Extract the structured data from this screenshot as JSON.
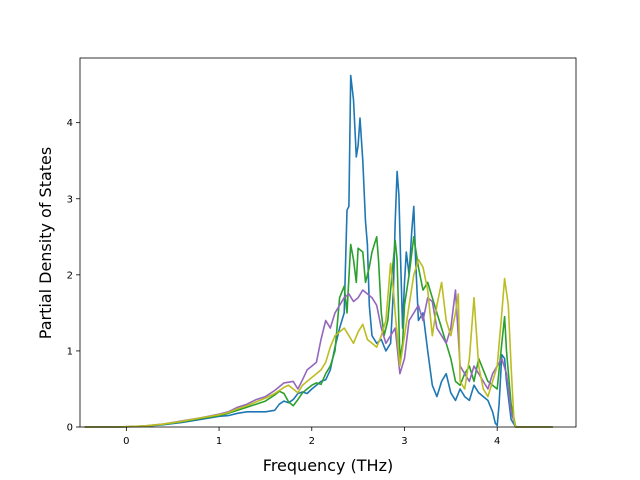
{
  "chart_data": {
    "type": "line",
    "title": "",
    "xlabel": "Frequency (THz)",
    "ylabel": "Partial Density of States",
    "xlim": [
      -0.5,
      4.85
    ],
    "ylim": [
      0,
      4.85
    ],
    "xticks": [
      0,
      1,
      2,
      3,
      4
    ],
    "yticks": [
      0,
      1,
      2,
      3,
      4
    ],
    "grid": false,
    "legend": "none",
    "series": [
      {
        "color": "#1f77b4",
        "points": [
          [
            -0.45,
            0
          ],
          [
            -0.3,
            0
          ],
          [
            -0.1,
            0
          ],
          [
            0.0,
            0.003
          ],
          [
            0.2,
            0.01
          ],
          [
            0.4,
            0.03
          ],
          [
            0.6,
            0.06
          ],
          [
            0.8,
            0.1
          ],
          [
            1.0,
            0.14
          ],
          [
            1.1,
            0.15
          ],
          [
            1.2,
            0.18
          ],
          [
            1.3,
            0.2
          ],
          [
            1.4,
            0.2
          ],
          [
            1.5,
            0.2
          ],
          [
            1.6,
            0.22
          ],
          [
            1.65,
            0.3
          ],
          [
            1.7,
            0.34
          ],
          [
            1.75,
            0.32
          ],
          [
            1.8,
            0.36
          ],
          [
            1.85,
            0.44
          ],
          [
            1.9,
            0.46
          ],
          [
            1.95,
            0.44
          ],
          [
            2.0,
            0.5
          ],
          [
            2.05,
            0.55
          ],
          [
            2.1,
            0.6
          ],
          [
            2.15,
            0.62
          ],
          [
            2.2,
            0.75
          ],
          [
            2.25,
            1.05
          ],
          [
            2.3,
            1.3
          ],
          [
            2.35,
            1.5
          ],
          [
            2.38,
            2.85
          ],
          [
            2.4,
            2.9
          ],
          [
            2.42,
            4.62
          ],
          [
            2.45,
            4.3
          ],
          [
            2.48,
            3.55
          ],
          [
            2.5,
            3.7
          ],
          [
            2.52,
            4.06
          ],
          [
            2.55,
            3.5
          ],
          [
            2.58,
            2.7
          ],
          [
            2.6,
            2.4
          ],
          [
            2.62,
            1.6
          ],
          [
            2.65,
            1.2
          ],
          [
            2.7,
            1.1
          ],
          [
            2.75,
            1.15
          ],
          [
            2.8,
            1.0
          ],
          [
            2.85,
            1.1
          ],
          [
            2.88,
            1.8
          ],
          [
            2.9,
            2.7
          ],
          [
            2.92,
            3.36
          ],
          [
            2.94,
            3.05
          ],
          [
            2.96,
            2.1
          ],
          [
            2.98,
            1.3
          ],
          [
            3.0,
            1.9
          ],
          [
            3.02,
            2.3
          ],
          [
            3.05,
            2.0
          ],
          [
            3.08,
            2.6
          ],
          [
            3.1,
            2.9
          ],
          [
            3.12,
            2.2
          ],
          [
            3.15,
            1.4
          ],
          [
            3.2,
            1.5
          ],
          [
            3.25,
            1.0
          ],
          [
            3.3,
            0.55
          ],
          [
            3.35,
            0.4
          ],
          [
            3.4,
            0.6
          ],
          [
            3.45,
            0.7
          ],
          [
            3.5,
            0.45
          ],
          [
            3.55,
            0.35
          ],
          [
            3.6,
            0.5
          ],
          [
            3.65,
            0.4
          ],
          [
            3.7,
            0.35
          ],
          [
            3.75,
            0.55
          ],
          [
            3.8,
            0.45
          ],
          [
            3.85,
            0.4
          ],
          [
            3.9,
            0.35
          ],
          [
            3.95,
            0.2
          ],
          [
            3.98,
            0.05
          ],
          [
            4.0,
            0.02
          ],
          [
            4.02,
            0.3
          ],
          [
            4.05,
            0.95
          ],
          [
            4.08,
            0.9
          ],
          [
            4.1,
            0.6
          ],
          [
            4.15,
            0.1
          ],
          [
            4.2,
            0
          ],
          [
            4.4,
            0
          ],
          [
            4.6,
            0
          ]
        ]
      },
      {
        "color": "#2ca02c",
        "points": [
          [
            -0.45,
            0
          ],
          [
            -0.3,
            0
          ],
          [
            -0.1,
            0
          ],
          [
            0.0,
            0.003
          ],
          [
            0.2,
            0.012
          ],
          [
            0.4,
            0.035
          ],
          [
            0.6,
            0.07
          ],
          [
            0.8,
            0.11
          ],
          [
            1.0,
            0.15
          ],
          [
            1.1,
            0.18
          ],
          [
            1.2,
            0.22
          ],
          [
            1.3,
            0.26
          ],
          [
            1.4,
            0.3
          ],
          [
            1.5,
            0.34
          ],
          [
            1.6,
            0.42
          ],
          [
            1.65,
            0.47
          ],
          [
            1.7,
            0.44
          ],
          [
            1.75,
            0.33
          ],
          [
            1.8,
            0.28
          ],
          [
            1.85,
            0.36
          ],
          [
            1.9,
            0.45
          ],
          [
            1.95,
            0.5
          ],
          [
            2.0,
            0.55
          ],
          [
            2.05,
            0.58
          ],
          [
            2.1,
            0.56
          ],
          [
            2.15,
            0.7
          ],
          [
            2.2,
            0.8
          ],
          [
            2.25,
            1.0
          ],
          [
            2.3,
            1.7
          ],
          [
            2.35,
            1.85
          ],
          [
            2.38,
            1.5
          ],
          [
            2.42,
            2.4
          ],
          [
            2.45,
            2.2
          ],
          [
            2.48,
            1.9
          ],
          [
            2.5,
            2.35
          ],
          [
            2.55,
            2.3
          ],
          [
            2.58,
            1.9
          ],
          [
            2.62,
            2.1
          ],
          [
            2.65,
            2.3
          ],
          [
            2.7,
            2.5
          ],
          [
            2.72,
            2.2
          ],
          [
            2.75,
            1.5
          ],
          [
            2.78,
            1.2
          ],
          [
            2.82,
            1.4
          ],
          [
            2.85,
            1.8
          ],
          [
            2.88,
            2.2
          ],
          [
            2.9,
            2.45
          ],
          [
            2.92,
            2.2
          ],
          [
            2.95,
            0.9
          ],
          [
            2.98,
            1.1
          ],
          [
            3.0,
            1.6
          ],
          [
            3.05,
            2.0
          ],
          [
            3.1,
            2.5
          ],
          [
            3.15,
            2.1
          ],
          [
            3.2,
            1.8
          ],
          [
            3.25,
            1.9
          ],
          [
            3.3,
            1.7
          ],
          [
            3.35,
            1.5
          ],
          [
            3.4,
            1.3
          ],
          [
            3.45,
            1.1
          ],
          [
            3.5,
            0.9
          ],
          [
            3.55,
            0.6
          ],
          [
            3.6,
            0.55
          ],
          [
            3.65,
            0.7
          ],
          [
            3.7,
            0.8
          ],
          [
            3.75,
            0.6
          ],
          [
            3.8,
            0.9
          ],
          [
            3.85,
            0.75
          ],
          [
            3.9,
            0.6
          ],
          [
            3.95,
            0.55
          ],
          [
            4.0,
            0.5
          ],
          [
            4.05,
            1.1
          ],
          [
            4.08,
            1.45
          ],
          [
            4.1,
            1.0
          ],
          [
            4.15,
            0.3
          ],
          [
            4.2,
            0
          ],
          [
            4.4,
            0
          ],
          [
            4.6,
            0
          ]
        ]
      },
      {
        "color": "#9467bd",
        "points": [
          [
            -0.45,
            0
          ],
          [
            -0.3,
            0
          ],
          [
            -0.1,
            0
          ],
          [
            0.0,
            0.004
          ],
          [
            0.2,
            0.015
          ],
          [
            0.4,
            0.04
          ],
          [
            0.6,
            0.08
          ],
          [
            0.8,
            0.12
          ],
          [
            1.0,
            0.17
          ],
          [
            1.1,
            0.2
          ],
          [
            1.2,
            0.26
          ],
          [
            1.3,
            0.3
          ],
          [
            1.4,
            0.36
          ],
          [
            1.5,
            0.4
          ],
          [
            1.6,
            0.48
          ],
          [
            1.7,
            0.58
          ],
          [
            1.8,
            0.6
          ],
          [
            1.85,
            0.5
          ],
          [
            1.9,
            0.62
          ],
          [
            1.95,
            0.75
          ],
          [
            2.0,
            0.8
          ],
          [
            2.05,
            0.85
          ],
          [
            2.1,
            1.15
          ],
          [
            2.15,
            1.4
          ],
          [
            2.2,
            1.3
          ],
          [
            2.25,
            1.5
          ],
          [
            2.3,
            1.6
          ],
          [
            2.35,
            1.7
          ],
          [
            2.4,
            1.75
          ],
          [
            2.45,
            1.65
          ],
          [
            2.5,
            1.7
          ],
          [
            2.55,
            1.8
          ],
          [
            2.6,
            1.75
          ],
          [
            2.65,
            1.7
          ],
          [
            2.7,
            1.6
          ],
          [
            2.75,
            1.3
          ],
          [
            2.8,
            1.1
          ],
          [
            2.85,
            1.2
          ],
          [
            2.9,
            1.3
          ],
          [
            2.95,
            0.7
          ],
          [
            3.0,
            0.9
          ],
          [
            3.05,
            1.4
          ],
          [
            3.1,
            1.5
          ],
          [
            3.15,
            1.6
          ],
          [
            3.2,
            1.4
          ],
          [
            3.25,
            1.7
          ],
          [
            3.3,
            1.65
          ],
          [
            3.35,
            1.3
          ],
          [
            3.4,
            1.2
          ],
          [
            3.45,
            1.1
          ],
          [
            3.5,
            1.3
          ],
          [
            3.55,
            1.8
          ],
          [
            3.6,
            0.8
          ],
          [
            3.65,
            0.7
          ],
          [
            3.7,
            0.6
          ],
          [
            3.75,
            0.8
          ],
          [
            3.8,
            0.7
          ],
          [
            3.85,
            0.6
          ],
          [
            3.9,
            0.5
          ],
          [
            3.95,
            0.7
          ],
          [
            4.0,
            0.8
          ],
          [
            4.05,
            0.9
          ],
          [
            4.1,
            0.7
          ],
          [
            4.15,
            0.2
          ],
          [
            4.2,
            0
          ],
          [
            4.4,
            0
          ],
          [
            4.6,
            0
          ]
        ]
      },
      {
        "color": "#bcbd22",
        "points": [
          [
            -0.45,
            0
          ],
          [
            -0.3,
            0
          ],
          [
            -0.1,
            0
          ],
          [
            0.0,
            0.004
          ],
          [
            0.2,
            0.014
          ],
          [
            0.4,
            0.038
          ],
          [
            0.6,
            0.075
          ],
          [
            0.8,
            0.12
          ],
          [
            1.0,
            0.16
          ],
          [
            1.1,
            0.19
          ],
          [
            1.2,
            0.24
          ],
          [
            1.3,
            0.28
          ],
          [
            1.4,
            0.33
          ],
          [
            1.5,
            0.38
          ],
          [
            1.6,
            0.44
          ],
          [
            1.7,
            0.52
          ],
          [
            1.75,
            0.55
          ],
          [
            1.8,
            0.5
          ],
          [
            1.85,
            0.45
          ],
          [
            1.9,
            0.55
          ],
          [
            1.95,
            0.6
          ],
          [
            2.0,
            0.65
          ],
          [
            2.05,
            0.7
          ],
          [
            2.1,
            0.75
          ],
          [
            2.15,
            0.85
          ],
          [
            2.2,
            1.05
          ],
          [
            2.25,
            1.2
          ],
          [
            2.3,
            1.25
          ],
          [
            2.35,
            1.3
          ],
          [
            2.4,
            1.2
          ],
          [
            2.45,
            1.1
          ],
          [
            2.5,
            1.25
          ],
          [
            2.55,
            1.35
          ],
          [
            2.6,
            1.15
          ],
          [
            2.65,
            1.1
          ],
          [
            2.7,
            1.05
          ],
          [
            2.75,
            1.2
          ],
          [
            2.8,
            1.4
          ],
          [
            2.85,
            2.15
          ],
          [
            2.88,
            1.8
          ],
          [
            2.9,
            1.5
          ],
          [
            2.95,
            0.8
          ],
          [
            3.0,
            1.2
          ],
          [
            3.05,
            1.6
          ],
          [
            3.1,
            2.0
          ],
          [
            3.15,
            2.2
          ],
          [
            3.2,
            2.1
          ],
          [
            3.25,
            1.8
          ],
          [
            3.3,
            1.2
          ],
          [
            3.35,
            1.6
          ],
          [
            3.4,
            1.9
          ],
          [
            3.45,
            1.4
          ],
          [
            3.5,
            1.2
          ],
          [
            3.55,
            1.5
          ],
          [
            3.58,
            1.75
          ],
          [
            3.6,
            0.6
          ],
          [
            3.65,
            0.5
          ],
          [
            3.7,
            0.9
          ],
          [
            3.75,
            1.7
          ],
          [
            3.8,
            0.8
          ],
          [
            3.85,
            0.5
          ],
          [
            3.9,
            0.4
          ],
          [
            3.95,
            0.6
          ],
          [
            4.0,
            0.8
          ],
          [
            4.05,
            1.5
          ],
          [
            4.08,
            1.95
          ],
          [
            4.12,
            1.6
          ],
          [
            4.15,
            0.8
          ],
          [
            4.18,
            0.1
          ],
          [
            4.2,
            0
          ],
          [
            4.4,
            0
          ],
          [
            4.6,
            0
          ]
        ]
      }
    ]
  }
}
